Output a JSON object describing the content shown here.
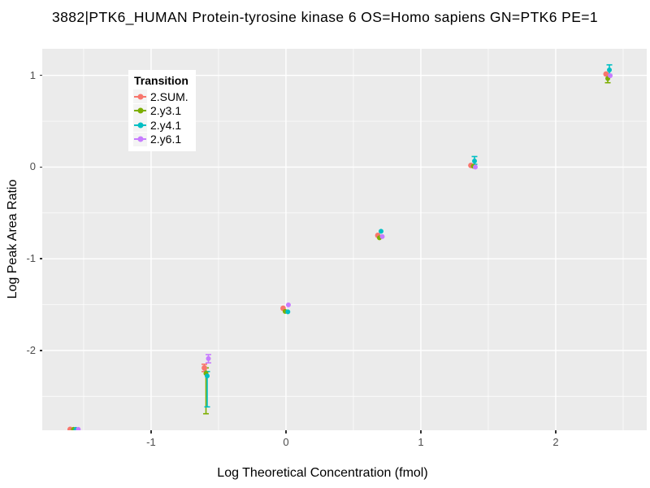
{
  "title": "3882|PTK6_HUMAN Protein-tyrosine kinase 6 OS=Homo sapiens GN=PTK6 PE=1",
  "chart_data": {
    "type": "scatter",
    "title": "3882|PTK6_HUMAN Protein-tyrosine kinase 6 OS=Homo sapiens GN=PTK6 PE=1",
    "xlabel": "Log Theoretical Concentration (fmol)",
    "ylabel": "Log Peak Area Ratio",
    "xlim": [
      -1.807,
      2.675
    ],
    "ylim": [
      -2.87,
      1.29
    ],
    "x_major_ticks": [
      -1,
      0,
      1,
      2
    ],
    "y_major_ticks": [
      1,
      0,
      -1,
      -2
    ],
    "x_minor_ticks": [
      -1.5,
      -0.5,
      0.5,
      1.5,
      2.5
    ],
    "y_minor_ticks": [
      0.5,
      -0.5,
      -1.5,
      -2.5
    ],
    "grid": true,
    "panel_bg": "#EBEBEB",
    "grid_color": "#FFFFFF",
    "legend_title": "Transition",
    "legend_position": "top-left-inset",
    "series": [
      {
        "name": "2.SUM.",
        "color": "#F8766D",
        "point_size": 3.4,
        "points": [
          {
            "x": -1.6,
            "y": -2.86
          },
          {
            "x": -0.605,
            "y": -2.19,
            "err": [
              -2.23,
              -2.15
            ]
          },
          {
            "x": -0.021,
            "y": -1.54
          },
          {
            "x": 0.681,
            "y": -0.745
          },
          {
            "x": 1.371,
            "y": 0.018
          },
          {
            "x": 2.373,
            "y": 1.015
          }
        ]
      },
      {
        "name": "2.y3.1",
        "color": "#7CAE00",
        "point_size": 3.0,
        "points": [
          {
            "x": -1.575,
            "y": -2.86
          },
          {
            "x": -0.593,
            "y": -2.25,
            "err": [
              -2.69,
              -2.19
            ]
          },
          {
            "x": -0.006,
            "y": -1.574
          },
          {
            "x": 0.693,
            "y": -0.771
          },
          {
            "x": 1.389,
            "y": 0.009
          },
          {
            "x": 2.386,
            "y": 0.966,
            "err": [
              0.92,
              0.995
            ]
          }
        ]
      },
      {
        "name": "2.y4.1",
        "color": "#00BFC4",
        "point_size": 3.0,
        "points": [
          {
            "x": -1.558,
            "y": -2.86
          },
          {
            "x": -0.584,
            "y": -2.278,
            "err": [
              -2.615,
              -2.23
            ]
          },
          {
            "x": 0.014,
            "y": -1.578
          },
          {
            "x": 0.705,
            "y": -0.7
          },
          {
            "x": 1.398,
            "y": 0.066,
            "err": [
              0.03,
              0.115
            ]
          },
          {
            "x": 2.398,
            "y": 1.059,
            "err": [
              1.01,
              1.115
            ]
          }
        ]
      },
      {
        "name": "2.y6.1",
        "color": "#C77CFF",
        "point_size": 3.0,
        "points": [
          {
            "x": -1.54,
            "y": -2.86
          },
          {
            "x": -0.575,
            "y": -2.088,
            "err": [
              -2.135,
              -2.045
            ]
          },
          {
            "x": 0.018,
            "y": -1.503
          },
          {
            "x": 0.714,
            "y": -0.758
          },
          {
            "x": 1.404,
            "y": 0.0
          },
          {
            "x": 2.404,
            "y": 0.997
          }
        ]
      }
    ]
  }
}
